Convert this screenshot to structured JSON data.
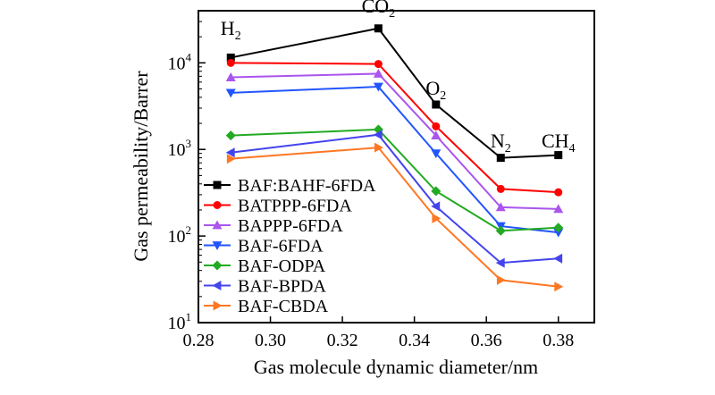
{
  "chart_data": {
    "type": "line",
    "xlabel": "Gas molecule dynamic diameter/nm",
    "ylabel": "Gas permeability/Barrer",
    "xlim": [
      0.28,
      0.39
    ],
    "ylim": [
      10,
      40000
    ],
    "yscale": "log",
    "xticks": [
      "0.28",
      "0.30",
      "0.32",
      "0.34",
      "0.36",
      "0.38"
    ],
    "yticks": [
      {
        "base": "10",
        "exp": "1",
        "value": 10
      },
      {
        "base": "10",
        "exp": "2",
        "value": 100
      },
      {
        "base": "10",
        "exp": "3",
        "value": 1000
      },
      {
        "base": "10",
        "exp": "4",
        "value": 10000
      }
    ],
    "x": [
      0.289,
      0.33,
      0.346,
      0.364,
      0.38
    ],
    "gas_labels": [
      {
        "base": "H",
        "sub": "2",
        "x": 0.289,
        "y": 21000
      },
      {
        "base": "CO",
        "sub": "2",
        "x": 0.33,
        "y": 38000
      },
      {
        "base": "O",
        "sub": "2",
        "x": 0.346,
        "y": 4300
      },
      {
        "base": "N",
        "sub": "2",
        "x": 0.364,
        "y": 1050
      },
      {
        "base": "CH",
        "sub": "4",
        "x": 0.38,
        "y": 1050
      }
    ],
    "legend_position": "lower-left",
    "series": [
      {
        "name": "BAF:BAHF-6FDA",
        "color": "#000000",
        "marker": "square",
        "values": [
          11500,
          25000,
          3300,
          800,
          860
        ]
      },
      {
        "name": "BATPPP-6FDA",
        "color": "#ff0000",
        "marker": "circle",
        "values": [
          10000,
          9700,
          1850,
          350,
          320
        ]
      },
      {
        "name": "BAPPP-6FDA",
        "color": "#aa55ee",
        "marker": "triangle-up",
        "values": [
          6800,
          7500,
          1450,
          215,
          205
        ]
      },
      {
        "name": "BAF-6FDA",
        "color": "#2255ff",
        "marker": "triangle-down",
        "values": [
          4500,
          5300,
          900,
          130,
          110
        ]
      },
      {
        "name": "BAF-ODPA",
        "color": "#22aa22",
        "marker": "diamond",
        "values": [
          1450,
          1700,
          330,
          115,
          125
        ]
      },
      {
        "name": "BAF-BPDA",
        "color": "#4444ee",
        "marker": "triangle-left",
        "values": [
          920,
          1480,
          220,
          49,
          55
        ]
      },
      {
        "name": "BAF-CBDA",
        "color": "#ff7722",
        "marker": "triangle-right",
        "values": [
          780,
          1050,
          160,
          31,
          26
        ]
      }
    ]
  }
}
